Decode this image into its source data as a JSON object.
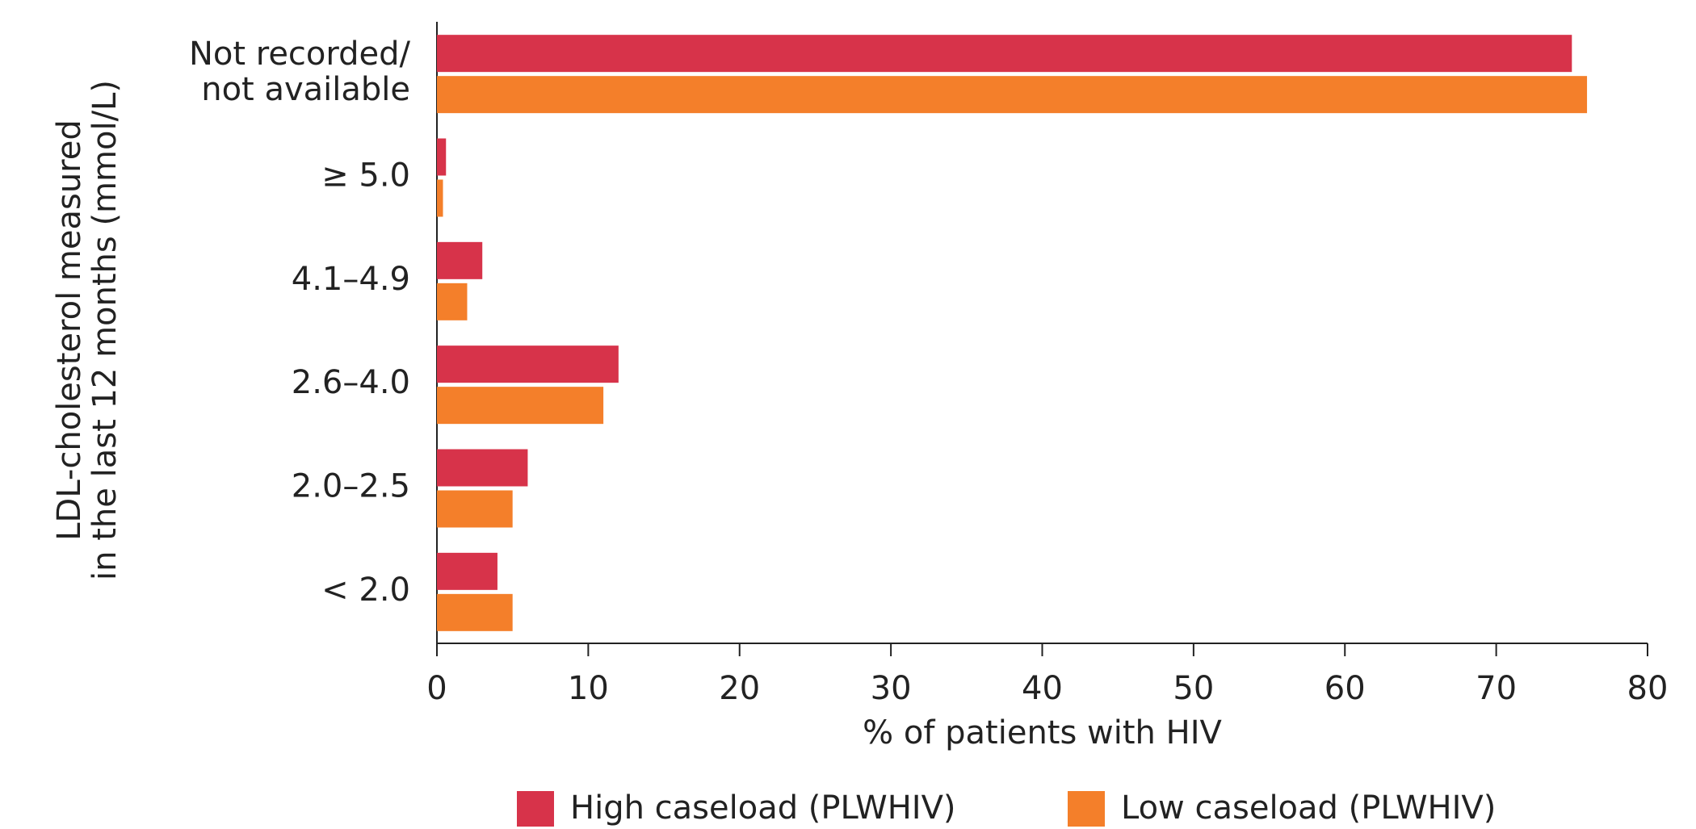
{
  "chart_data": {
    "type": "bar",
    "orientation": "horizontal",
    "x_label": "% of patients with HIV",
    "y_label": "LDL-cholesterol measured\nin the last 12 months (mmol/L)",
    "categories": [
      "Not recorded/\nnot available",
      "≥ 5.0",
      "4.1–4.9",
      "2.6–4.0",
      "2.0–2.5",
      "< 2.0"
    ],
    "series": [
      {
        "name": "High caseload (PLWHIV)",
        "color": "#d7334a",
        "values": [
          75,
          0.6,
          3,
          12,
          6,
          4
        ]
      },
      {
        "name": "Low caseload (PLWHIV)",
        "color": "#f47f2a",
        "values": [
          76,
          0.4,
          2,
          11,
          5,
          5
        ]
      }
    ],
    "xlim": [
      0,
      80
    ],
    "xticks": [
      0,
      10,
      20,
      30,
      40,
      50,
      60,
      70,
      80
    ],
    "legend": "bottom"
  }
}
